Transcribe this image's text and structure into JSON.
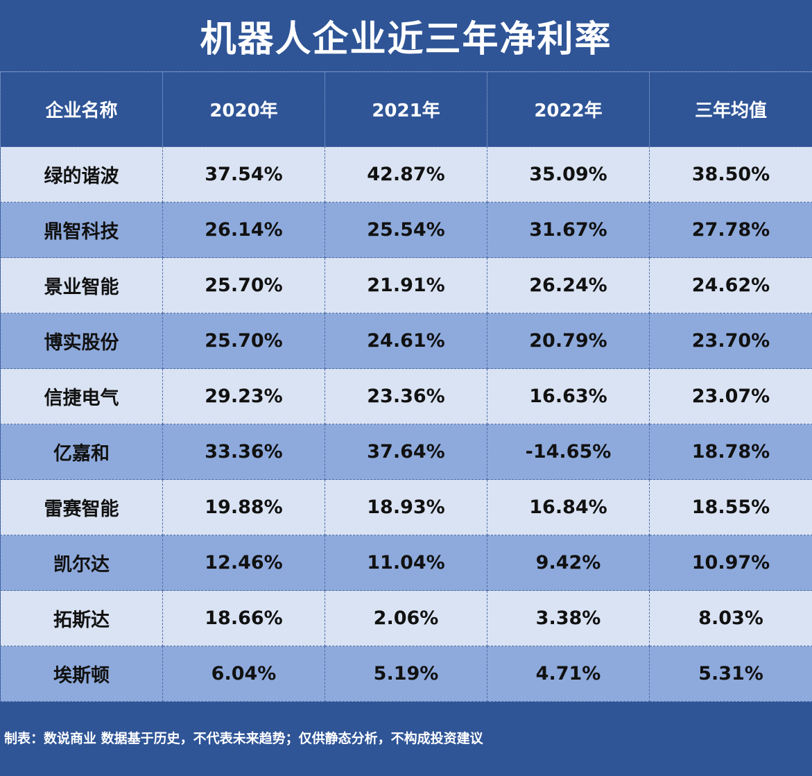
{
  "title": "机器人企业近三年净利率",
  "chart_data": {
    "type": "table",
    "title": "机器人企业近三年净利率",
    "columns": [
      "企业名称",
      "2020年",
      "2021年",
      "2022年",
      "三年均值"
    ],
    "rows": [
      [
        "绿的谐波",
        "37.54%",
        "42.87%",
        "35.09%",
        "38.50%"
      ],
      [
        "鼎智科技",
        "26.14%",
        "25.54%",
        "31.67%",
        "27.78%"
      ],
      [
        "景业智能",
        "25.70%",
        "21.91%",
        "26.24%",
        "24.62%"
      ],
      [
        "博实股份",
        "25.70%",
        "24.61%",
        "20.79%",
        "23.70%"
      ],
      [
        "信捷电气",
        "29.23%",
        "23.36%",
        "16.63%",
        "23.07%"
      ],
      [
        "亿嘉和",
        "33.36%",
        "37.64%",
        "-14.65%",
        "18.78%"
      ],
      [
        "雷赛智能",
        "19.88%",
        "18.93%",
        "16.84%",
        "18.55%"
      ],
      [
        "凯尔达",
        "12.46%",
        "11.04%",
        "9.42%",
        "10.97%"
      ],
      [
        "拓斯达",
        "18.66%",
        "2.06%",
        "3.38%",
        "8.03%"
      ],
      [
        "埃斯顿",
        "6.04%",
        "5.19%",
        "4.71%",
        "5.31%"
      ]
    ]
  },
  "footer": "制表：数说商业 数据基于历史，不代表未来趋势；仅供静态分析，不构成投资建议",
  "colors": {
    "header_bg": "#2f5597",
    "row_light": "#dae3f3",
    "row_dark": "#8eaadc",
    "text": "#111111"
  }
}
